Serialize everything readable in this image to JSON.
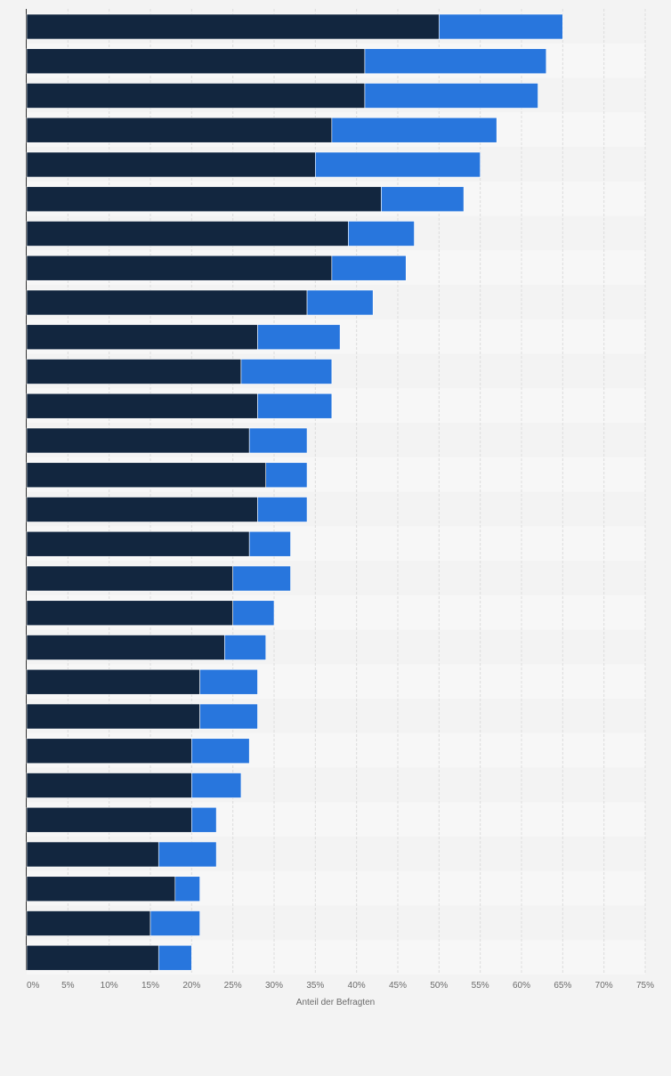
{
  "chart_data": {
    "type": "bar",
    "orientation": "horizontal",
    "stacked": true,
    "title": "",
    "xlabel": "Anteil der Befragten",
    "ylabel": "",
    "xlim": [
      0,
      75
    ],
    "x_ticks": [
      "0%",
      "5%",
      "10%",
      "15%",
      "20%",
      "25%",
      "30%",
      "35%",
      "40%",
      "45%",
      "50%",
      "55%",
      "60%",
      "65%",
      "70%",
      "75%"
    ],
    "grid": "vertical dashed",
    "category_labels_visible": false,
    "series": [
      {
        "color": "#12263f",
        "values": [
          50,
          41,
          41,
          37,
          35,
          43,
          39,
          37,
          34,
          28,
          26,
          28,
          27,
          29,
          28,
          27,
          25,
          25,
          24,
          21,
          21,
          20,
          20,
          20,
          16,
          18,
          15,
          16
        ]
      },
      {
        "color": "#2876dd",
        "values": [
          15,
          22,
          21,
          20,
          20,
          10,
          8,
          9,
          8,
          10,
          11,
          9,
          7,
          5,
          6,
          5,
          7,
          5,
          5,
          7,
          7,
          7,
          6,
          3,
          7,
          3,
          6,
          4
        ]
      }
    ]
  },
  "axis": {
    "x_title": "Anteil der Befragten"
  }
}
